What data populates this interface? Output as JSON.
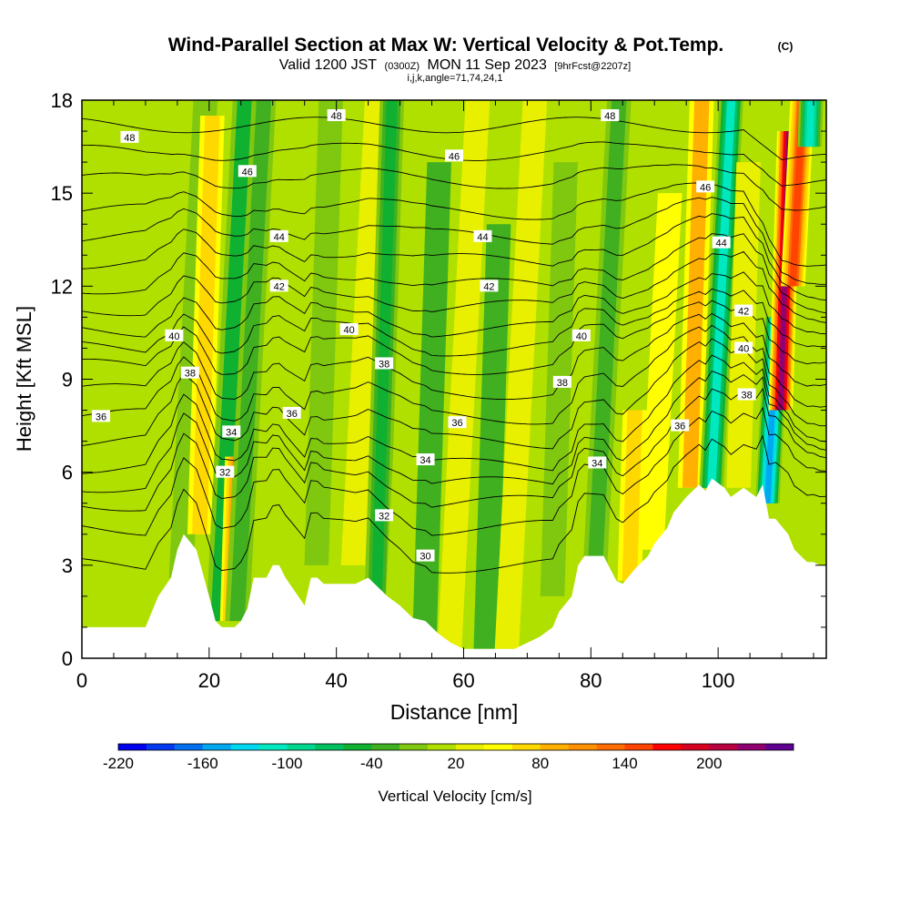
{
  "title": {
    "main": "Wind-Parallel Section at Max W: Vertical Velocity & Pot.Temp.",
    "copyright": "(C)",
    "valid_prefix": "Valid 1200 JST",
    "valid_utc": "(0300Z)",
    "valid_date": "MON 11 Sep 2023",
    "forecast": "[9hrFcst@2207z]",
    "section_params": "i,j,k,angle=71,74,24,1"
  },
  "chart_data": {
    "type": "heatmap",
    "xlabel": "Distance [nm]",
    "ylabel": "Height [Kft MSL]",
    "xlim": [
      0,
      117
    ],
    "ylim": [
      0,
      18
    ],
    "x_ticks": [
      0,
      20,
      40,
      60,
      80,
      100
    ],
    "y_ticks": [
      0,
      3,
      6,
      9,
      12,
      15,
      18
    ],
    "grid": false,
    "colorbar": {
      "label": "Vertical Velocity [cm/s]",
      "tick_labels": [
        "-220",
        "-160",
        "-100",
        "-40",
        "20",
        "80",
        "140",
        "200"
      ],
      "tick_values": [
        -220,
        -160,
        -100,
        -40,
        20,
        80,
        140,
        200
      ],
      "range": [
        -220,
        260
      ],
      "colors": [
        "#0000f0",
        "#0038f0",
        "#0070f0",
        "#00a8f0",
        "#00d8f0",
        "#00e8c0",
        "#00d890",
        "#00c060",
        "#10b030",
        "#40b020",
        "#80c810",
        "#b0e000",
        "#e8f000",
        "#ffff00",
        "#ffd800",
        "#ffb000",
        "#ff9000",
        "#ff6c00",
        "#ff4400",
        "#ff0000",
        "#d80020",
        "#b80040",
        "#900070",
        "#600090"
      ]
    },
    "velocity_columns": [
      {
        "x": 17.5,
        "w": -10,
        "y_from": 2.6,
        "y_to": 18
      },
      {
        "x": 19.5,
        "w": 70,
        "y_from": 4,
        "y_to": 17.5
      },
      {
        "x": 23.5,
        "w": -50,
        "y_from": 1.2,
        "y_to": 18
      },
      {
        "x": 24.0,
        "w": 120,
        "y_from": 1.2,
        "y_to": 6.5
      },
      {
        "x": 26.5,
        "w": -30,
        "y_from": 1.2,
        "y_to": 18
      },
      {
        "x": 38.0,
        "w": -20,
        "y_from": 3,
        "y_to": 18
      },
      {
        "x": 44.5,
        "w": 35,
        "y_from": 3,
        "y_to": 18
      },
      {
        "x": 47.5,
        "w": -60,
        "y_from": 1.5,
        "y_to": 18
      },
      {
        "x": 51.0,
        "w": 10,
        "y_from": 0.5,
        "y_to": 14
      },
      {
        "x": 55.0,
        "w": -25,
        "y_from": 0.5,
        "y_to": 16
      },
      {
        "x": 60.0,
        "w": 35,
        "y_from": 0.3,
        "y_to": 18
      },
      {
        "x": 64.5,
        "w": -25,
        "y_from": 0.3,
        "y_to": 14
      },
      {
        "x": 69.0,
        "w": 35,
        "y_from": 0.3,
        "y_to": 18
      },
      {
        "x": 75.0,
        "w": -20,
        "y_from": 2,
        "y_to": 16
      },
      {
        "x": 82.5,
        "w": -40,
        "y_from": 2.5,
        "y_to": 18
      },
      {
        "x": 86.5,
        "w": 75,
        "y_from": 2.5,
        "y_to": 8
      },
      {
        "x": 91.0,
        "w": 40,
        "y_from": 3.5,
        "y_to": 15
      },
      {
        "x": 96.5,
        "w": 80,
        "y_from": 5.5,
        "y_to": 18
      },
      {
        "x": 100.5,
        "w": -110,
        "y_from": 5.5,
        "y_to": 18
      },
      {
        "x": 104.0,
        "w": 20,
        "y_from": 5.5,
        "y_to": 16
      },
      {
        "x": 108.5,
        "w": -160,
        "y_from": 5,
        "y_to": 11
      },
      {
        "x": 110.5,
        "w": 220,
        "y_from": 8,
        "y_to": 17
      },
      {
        "x": 112.5,
        "w": 150,
        "y_from": 12,
        "y_to": 18
      },
      {
        "x": 114.5,
        "w": -120,
        "y_from": 16.5,
        "y_to": 18
      }
    ],
    "terrain": [
      [
        0,
        1.0
      ],
      [
        10,
        1.0
      ],
      [
        12,
        2.0
      ],
      [
        14,
        2.6
      ],
      [
        15,
        3.5
      ],
      [
        16,
        4.0
      ],
      [
        18,
        3.5
      ],
      [
        20,
        2.0
      ],
      [
        21,
        1.2
      ],
      [
        22,
        1.0
      ],
      [
        24,
        1.0
      ],
      [
        25,
        1.2
      ],
      [
        26,
        1.6
      ],
      [
        27,
        2.6
      ],
      [
        29,
        2.6
      ],
      [
        30,
        3.0
      ],
      [
        31,
        3.0
      ],
      [
        32,
        2.6
      ],
      [
        34,
        2.0
      ],
      [
        35,
        1.7
      ],
      [
        36,
        2.6
      ],
      [
        37,
        2.6
      ],
      [
        38,
        2.4
      ],
      [
        43,
        2.4
      ],
      [
        45,
        2.6
      ],
      [
        46,
        2.4
      ],
      [
        48,
        2.0
      ],
      [
        50,
        1.7
      ],
      [
        52,
        1.3
      ],
      [
        54,
        1.2
      ],
      [
        56,
        0.8
      ],
      [
        58,
        0.5
      ],
      [
        60,
        0.3
      ],
      [
        68,
        0.3
      ],
      [
        70,
        0.5
      ],
      [
        72,
        0.7
      ],
      [
        74,
        1.0
      ],
      [
        75,
        1.5
      ],
      [
        77,
        2.0
      ],
      [
        78,
        3.0
      ],
      [
        79,
        3.3
      ],
      [
        82,
        3.3
      ],
      [
        84,
        2.5
      ],
      [
        85,
        2.4
      ],
      [
        87,
        2.9
      ],
      [
        89,
        3.3
      ],
      [
        90,
        3.7
      ],
      [
        92,
        4.2
      ],
      [
        93,
        4.7
      ],
      [
        95,
        5.2
      ],
      [
        97,
        5.6
      ],
      [
        98,
        5.4
      ],
      [
        99,
        5.8
      ],
      [
        101,
        5.5
      ],
      [
        102,
        5.2
      ],
      [
        104,
        5.5
      ],
      [
        106,
        5.2
      ],
      [
        107,
        5.6
      ],
      [
        108,
        4.5
      ],
      [
        109,
        4.5
      ],
      [
        111,
        4.0
      ],
      [
        112,
        3.5
      ],
      [
        113,
        3.3
      ],
      [
        114,
        3.1
      ],
      [
        115,
        3.1
      ],
      [
        116,
        3.0
      ],
      [
        117,
        3.0
      ]
    ]
  },
  "theta_contours": {
    "levels": [
      30,
      31,
      32,
      33,
      34,
      35,
      36,
      37,
      38,
      39,
      40,
      41,
      42,
      43,
      44,
      45,
      46,
      47,
      48
    ],
    "base_heights": {
      "30": 3.0,
      "31": 4.2,
      "32": 5.0,
      "33": 5.6,
      "34": 6.2,
      "35": 7.0,
      "36": 7.8,
      "37": 8.6,
      "38": 9.4,
      "39": 10.0,
      "40": 10.6,
      "41": 11.3,
      "42": 12.0,
      "43": 12.8,
      "44": 13.6,
      "45": 14.4,
      "46": 15.4,
      "47": 16.3,
      "48": 17.2
    },
    "labels": [
      {
        "text": "48",
        "x": 7.5,
        "y": 16.8
      },
      {
        "text": "48",
        "x": 40,
        "y": 17.5
      },
      {
        "text": "48",
        "x": 83,
        "y": 17.5
      },
      {
        "text": "46",
        "x": 26,
        "y": 15.7
      },
      {
        "text": "46",
        "x": 58.5,
        "y": 16.2
      },
      {
        "text": "46",
        "x": 98,
        "y": 15.2
      },
      {
        "text": "44",
        "x": 31,
        "y": 13.6
      },
      {
        "text": "44",
        "x": 63,
        "y": 13.6
      },
      {
        "text": "44",
        "x": 100.5,
        "y": 13.4
      },
      {
        "text": "42",
        "x": 31,
        "y": 12.0
      },
      {
        "text": "42",
        "x": 64,
        "y": 12.0
      },
      {
        "text": "42",
        "x": 104,
        "y": 11.2
      },
      {
        "text": "40",
        "x": 14.5,
        "y": 10.4
      },
      {
        "text": "40",
        "x": 42,
        "y": 10.6
      },
      {
        "text": "40",
        "x": 78.5,
        "y": 10.4
      },
      {
        "text": "40",
        "x": 104,
        "y": 10.0
      },
      {
        "text": "38",
        "x": 17,
        "y": 9.2
      },
      {
        "text": "38",
        "x": 47.5,
        "y": 9.5
      },
      {
        "text": "38",
        "x": 75.5,
        "y": 8.9
      },
      {
        "text": "38",
        "x": 104.5,
        "y": 8.5
      },
      {
        "text": "36",
        "x": 3,
        "y": 7.8
      },
      {
        "text": "36",
        "x": 33,
        "y": 7.9
      },
      {
        "text": "36",
        "x": 59,
        "y": 7.6
      },
      {
        "text": "36",
        "x": 94,
        "y": 7.5
      },
      {
        "text": "34",
        "x": 23.5,
        "y": 7.3
      },
      {
        "text": "34",
        "x": 54,
        "y": 6.4
      },
      {
        "text": "34",
        "x": 81,
        "y": 6.3
      },
      {
        "text": "32",
        "x": 22.5,
        "y": 6.0
      },
      {
        "text": "32",
        "x": 47.5,
        "y": 4.6
      },
      {
        "text": "30",
        "x": 54,
        "y": 3.3
      }
    ]
  }
}
